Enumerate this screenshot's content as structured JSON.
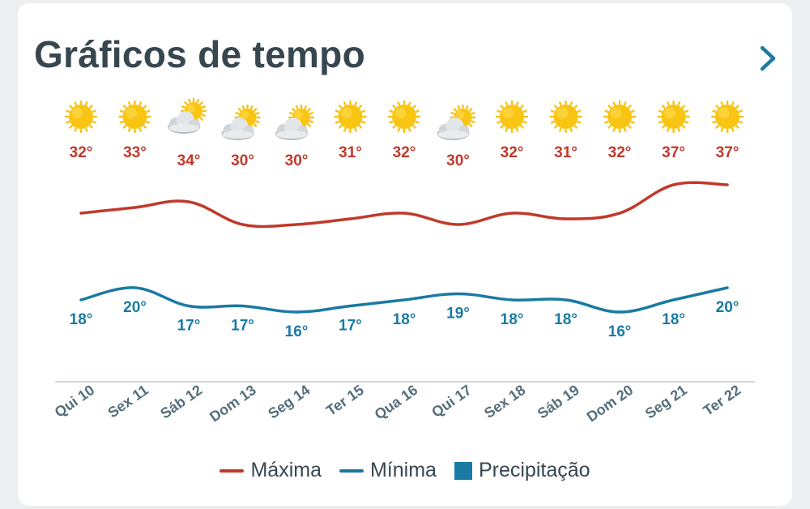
{
  "title": "Gráficos de tempo",
  "chart_data": {
    "type": "line",
    "categories": [
      "Qui 10",
      "Sex 11",
      "Sáb 12",
      "Dom 13",
      "Seg 14",
      "Ter 15",
      "Qua 16",
      "Qui 17",
      "Sex 18",
      "Sáb 19",
      "Dom 20",
      "Seg 21",
      "Ter 22"
    ],
    "icons": [
      "sun-icon",
      "sun-icon",
      "partly-cloudy-icon",
      "partly-cloudy-icon",
      "partly-cloudy-icon",
      "sun-icon",
      "sun-icon",
      "partly-cloudy-icon",
      "sun-icon",
      "sun-icon",
      "sun-icon",
      "sun-icon",
      "sun-icon"
    ],
    "series": [
      {
        "name": "Máxima",
        "color": "#c0392b",
        "values": [
          32,
          33,
          34,
          30,
          30,
          31,
          32,
          30,
          32,
          31,
          32,
          37,
          37
        ],
        "labels": [
          "32°",
          "33°",
          "34°",
          "30°",
          "30°",
          "31°",
          "32°",
          "30°",
          "32°",
          "31°",
          "32°",
          "37°",
          "37°"
        ]
      },
      {
        "name": "Mínima",
        "color": "#1a7aa3",
        "values": [
          18,
          20,
          17,
          17,
          16,
          17,
          18,
          19,
          18,
          18,
          16,
          18,
          20
        ],
        "labels": [
          "18°",
          "20°",
          "17°",
          "17°",
          "16°",
          "17°",
          "18°",
          "19°",
          "18°",
          "18°",
          "16°",
          "18°",
          "20°"
        ]
      }
    ],
    "legend": [
      {
        "name": "Máxima",
        "color": "#c0392b",
        "kind": "line"
      },
      {
        "name": "Mínima",
        "color": "#1a7aa3",
        "kind": "line"
      },
      {
        "name": "Precipitação",
        "color": "#1a7aa3",
        "kind": "box"
      }
    ],
    "legend_position": "bottom",
    "grid": false
  }
}
